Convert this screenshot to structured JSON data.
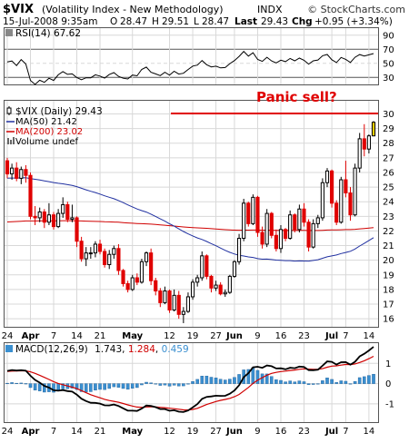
{
  "header": {
    "symbol": "$VIX",
    "description": "(Volatility Index - New Methodology)",
    "exchange": "INDX",
    "copyright": "© StockCharts.com",
    "date": "15-Jul-2008 9:35am",
    "open_label": "O",
    "open": "28.47",
    "high_label": "H",
    "high": "29.51",
    "low_label": "L",
    "low": "28.47",
    "last_label": "Last",
    "last": "29.43",
    "chg_label": "Chg",
    "chg": "+0.95 (+3.34%)"
  },
  "rsi": {
    "legend": "RSI(14) 67.62",
    "levels": [
      90,
      70,
      50,
      30
    ],
    "ticks": [
      "90",
      "70",
      "50",
      "30"
    ]
  },
  "price": {
    "legend_main": "$VIX (Daily) 29.43",
    "legend_ma50": "MA(50) 21.42",
    "legend_ma200": "MA(200) 23.02",
    "legend_volume": "Volume undef",
    "annotation": "Panic sell?",
    "panic_level": 30,
    "ticks": [
      "30",
      "29",
      "28",
      "27",
      "26",
      "25",
      "24",
      "23",
      "22",
      "21",
      "20",
      "19",
      "18",
      "17",
      "16"
    ],
    "colors": {
      "up": "#000000",
      "down": "#e00000",
      "ma50": "#2030a0",
      "ma200": "#d00000",
      "panic": "#e00000",
      "last": "#f0d000"
    }
  },
  "macd": {
    "legend_name": "MACD(12,26,9)",
    "legend_macd": "1.743",
    "legend_signal": "1.284",
    "legend_hist": "0.459",
    "ticks": [
      "1",
      "0",
      "-1"
    ],
    "colors": {
      "macd": "#000000",
      "signal": "#d00000",
      "hist": "#3a8fd0"
    }
  },
  "xaxis_labels": [
    "24",
    "Apr",
    "7",
    "14",
    "21",
    "May",
    "12",
    "19",
    "27",
    "Jun",
    "9",
    "16",
    "23",
    "Jul",
    "7",
    "14"
  ],
  "chart_data": {
    "type": "candlestick",
    "x": [
      "Mar 24",
      "Mar 25",
      "Mar 26",
      "Mar 27",
      "Mar 28",
      "Mar 31",
      "Apr 1",
      "Apr 2",
      "Apr 3",
      "Apr 4",
      "Apr 7",
      "Apr 8",
      "Apr 9",
      "Apr 10",
      "Apr 11",
      "Apr 14",
      "Apr 15",
      "Apr 16",
      "Apr 17",
      "Apr 18",
      "Apr 21",
      "Apr 22",
      "Apr 23",
      "Apr 24",
      "Apr 25",
      "Apr 28",
      "Apr 29",
      "Apr 30",
      "May 1",
      "May 2",
      "May 5",
      "May 6",
      "May 7",
      "May 8",
      "May 9",
      "May 12",
      "May 13",
      "May 14",
      "May 15",
      "May 16",
      "May 19",
      "May 20",
      "May 21",
      "May 22",
      "May 23",
      "May 27",
      "May 28",
      "May 29",
      "May 30",
      "Jun 2",
      "Jun 3",
      "Jun 4",
      "Jun 5",
      "Jun 6",
      "Jun 9",
      "Jun 10",
      "Jun 11",
      "Jun 12",
      "Jun 13",
      "Jun 16",
      "Jun 17",
      "Jun 18",
      "Jun 19",
      "Jun 20",
      "Jun 23",
      "Jun 24",
      "Jun 25",
      "Jun 26",
      "Jun 27",
      "Jun 30",
      "Jul 1",
      "Jul 2",
      "Jul 3",
      "Jul 7",
      "Jul 8",
      "Jul 9",
      "Jul 10",
      "Jul 11",
      "Jul 14",
      "Jul 15"
    ],
    "ohlc": [
      [
        26.8,
        27.0,
        25.6,
        25.9
      ],
      [
        25.9,
        26.6,
        25.5,
        26.3
      ],
      [
        26.3,
        26.7,
        25.4,
        25.6
      ],
      [
        25.6,
        26.4,
        25.2,
        26.2
      ],
      [
        26.2,
        26.5,
        25.3,
        25.8
      ],
      [
        25.8,
        26.0,
        22.8,
        23.0
      ],
      [
        23.0,
        23.7,
        22.4,
        22.9
      ],
      [
        22.9,
        23.6,
        22.6,
        23.3
      ],
      [
        23.3,
        23.5,
        22.2,
        22.6
      ],
      [
        22.6,
        23.9,
        22.4,
        23.1
      ],
      [
        23.1,
        23.3,
        22.1,
        22.3
      ],
      [
        22.3,
        23.5,
        22.2,
        23.2
      ],
      [
        23.2,
        24.3,
        22.9,
        23.8
      ],
      [
        23.8,
        24.0,
        22.6,
        22.8
      ],
      [
        22.8,
        23.8,
        22.6,
        22.9
      ],
      [
        22.9,
        23.0,
        20.9,
        21.3
      ],
      [
        21.3,
        21.6,
        19.9,
        20.1
      ],
      [
        20.1,
        20.9,
        19.6,
        20.5
      ],
      [
        20.5,
        20.9,
        20.1,
        20.5
      ],
      [
        20.5,
        21.3,
        20.2,
        21.1
      ],
      [
        21.1,
        21.4,
        20.4,
        20.6
      ],
      [
        20.6,
        20.8,
        19.5,
        19.7
      ],
      [
        19.7,
        20.7,
        19.4,
        20.4
      ],
      [
        20.4,
        21.0,
        20.1,
        20.8
      ],
      [
        20.8,
        21.1,
        19.0,
        19.3
      ],
      [
        19.3,
        19.4,
        18.2,
        18.4
      ],
      [
        18.4,
        18.6,
        17.8,
        18.0
      ],
      [
        18.0,
        19.0,
        17.9,
        18.8
      ],
      [
        18.8,
        19.1,
        18.3,
        18.5
      ],
      [
        18.5,
        20.1,
        18.4,
        19.9
      ],
      [
        19.9,
        20.6,
        19.6,
        20.5
      ],
      [
        20.5,
        20.8,
        18.3,
        18.6
      ],
      [
        18.6,
        18.8,
        17.6,
        17.9
      ],
      [
        17.9,
        18.1,
        16.8,
        17.1
      ],
      [
        17.1,
        18.2,
        17.0,
        17.9
      ],
      [
        17.9,
        18.0,
        16.4,
        16.6
      ],
      [
        16.6,
        18.0,
        16.5,
        17.6
      ],
      [
        17.6,
        17.9,
        16.0,
        16.3
      ],
      [
        16.3,
        16.8,
        15.7,
        16.5
      ],
      [
        16.5,
        17.8,
        16.4,
        17.5
      ],
      [
        17.5,
        18.7,
        17.3,
        18.5
      ],
      [
        18.5,
        19.0,
        18.2,
        18.8
      ],
      [
        18.8,
        20.6,
        18.6,
        20.3
      ],
      [
        20.3,
        20.4,
        18.7,
        18.9
      ],
      [
        18.9,
        19.0,
        17.8,
        18.1
      ],
      [
        18.1,
        18.6,
        17.9,
        18.3
      ],
      [
        18.3,
        18.5,
        17.6,
        17.7
      ],
      [
        17.7,
        18.0,
        17.5,
        17.8
      ],
      [
        17.8,
        19.0,
        17.7,
        18.9
      ],
      [
        18.9,
        20.0,
        18.8,
        19.9
      ],
      [
        19.9,
        21.8,
        19.7,
        21.5
      ],
      [
        21.5,
        24.2,
        21.3,
        23.9
      ],
      [
        23.9,
        24.0,
        22.3,
        22.5
      ],
      [
        22.5,
        24.5,
        22.4,
        24.3
      ],
      [
        24.3,
        24.4,
        21.6,
        21.9
      ],
      [
        21.9,
        22.3,
        20.8,
        21.1
      ],
      [
        21.1,
        23.5,
        20.9,
        23.2
      ],
      [
        23.2,
        23.3,
        21.5,
        21.7
      ],
      [
        21.7,
        22.1,
        20.6,
        20.8
      ],
      [
        20.8,
        22.4,
        20.5,
        22.1
      ],
      [
        22.1,
        22.2,
        21.3,
        21.5
      ],
      [
        21.5,
        23.4,
        21.4,
        23.1
      ],
      [
        23.1,
        23.2,
        21.9,
        22.1
      ],
      [
        22.1,
        23.8,
        21.9,
        23.5
      ],
      [
        23.5,
        23.9,
        22.3,
        22.6
      ],
      [
        22.6,
        22.8,
        20.6,
        20.9
      ],
      [
        20.9,
        22.8,
        20.8,
        22.5
      ],
      [
        22.5,
        23.1,
        22.2,
        22.9
      ],
      [
        22.9,
        25.6,
        22.7,
        25.3
      ],
      [
        25.3,
        26.3,
        25.0,
        26.1
      ],
      [
        26.1,
        26.2,
        23.6,
        23.9
      ],
      [
        23.9,
        24.1,
        22.4,
        22.6
      ],
      [
        22.6,
        25.7,
        22.5,
        25.5
      ],
      [
        25.5,
        26.8,
        24.3,
        24.6
      ],
      [
        24.6,
        25.0,
        22.7,
        23.1
      ],
      [
        23.1,
        26.6,
        23.0,
        26.3
      ],
      [
        26.3,
        28.7,
        26.0,
        28.3
      ],
      [
        28.3,
        29.3,
        27.1,
        27.6
      ],
      [
        27.6,
        28.6,
        27.3,
        28.5
      ],
      [
        28.5,
        29.51,
        28.47,
        29.43
      ]
    ]
  }
}
